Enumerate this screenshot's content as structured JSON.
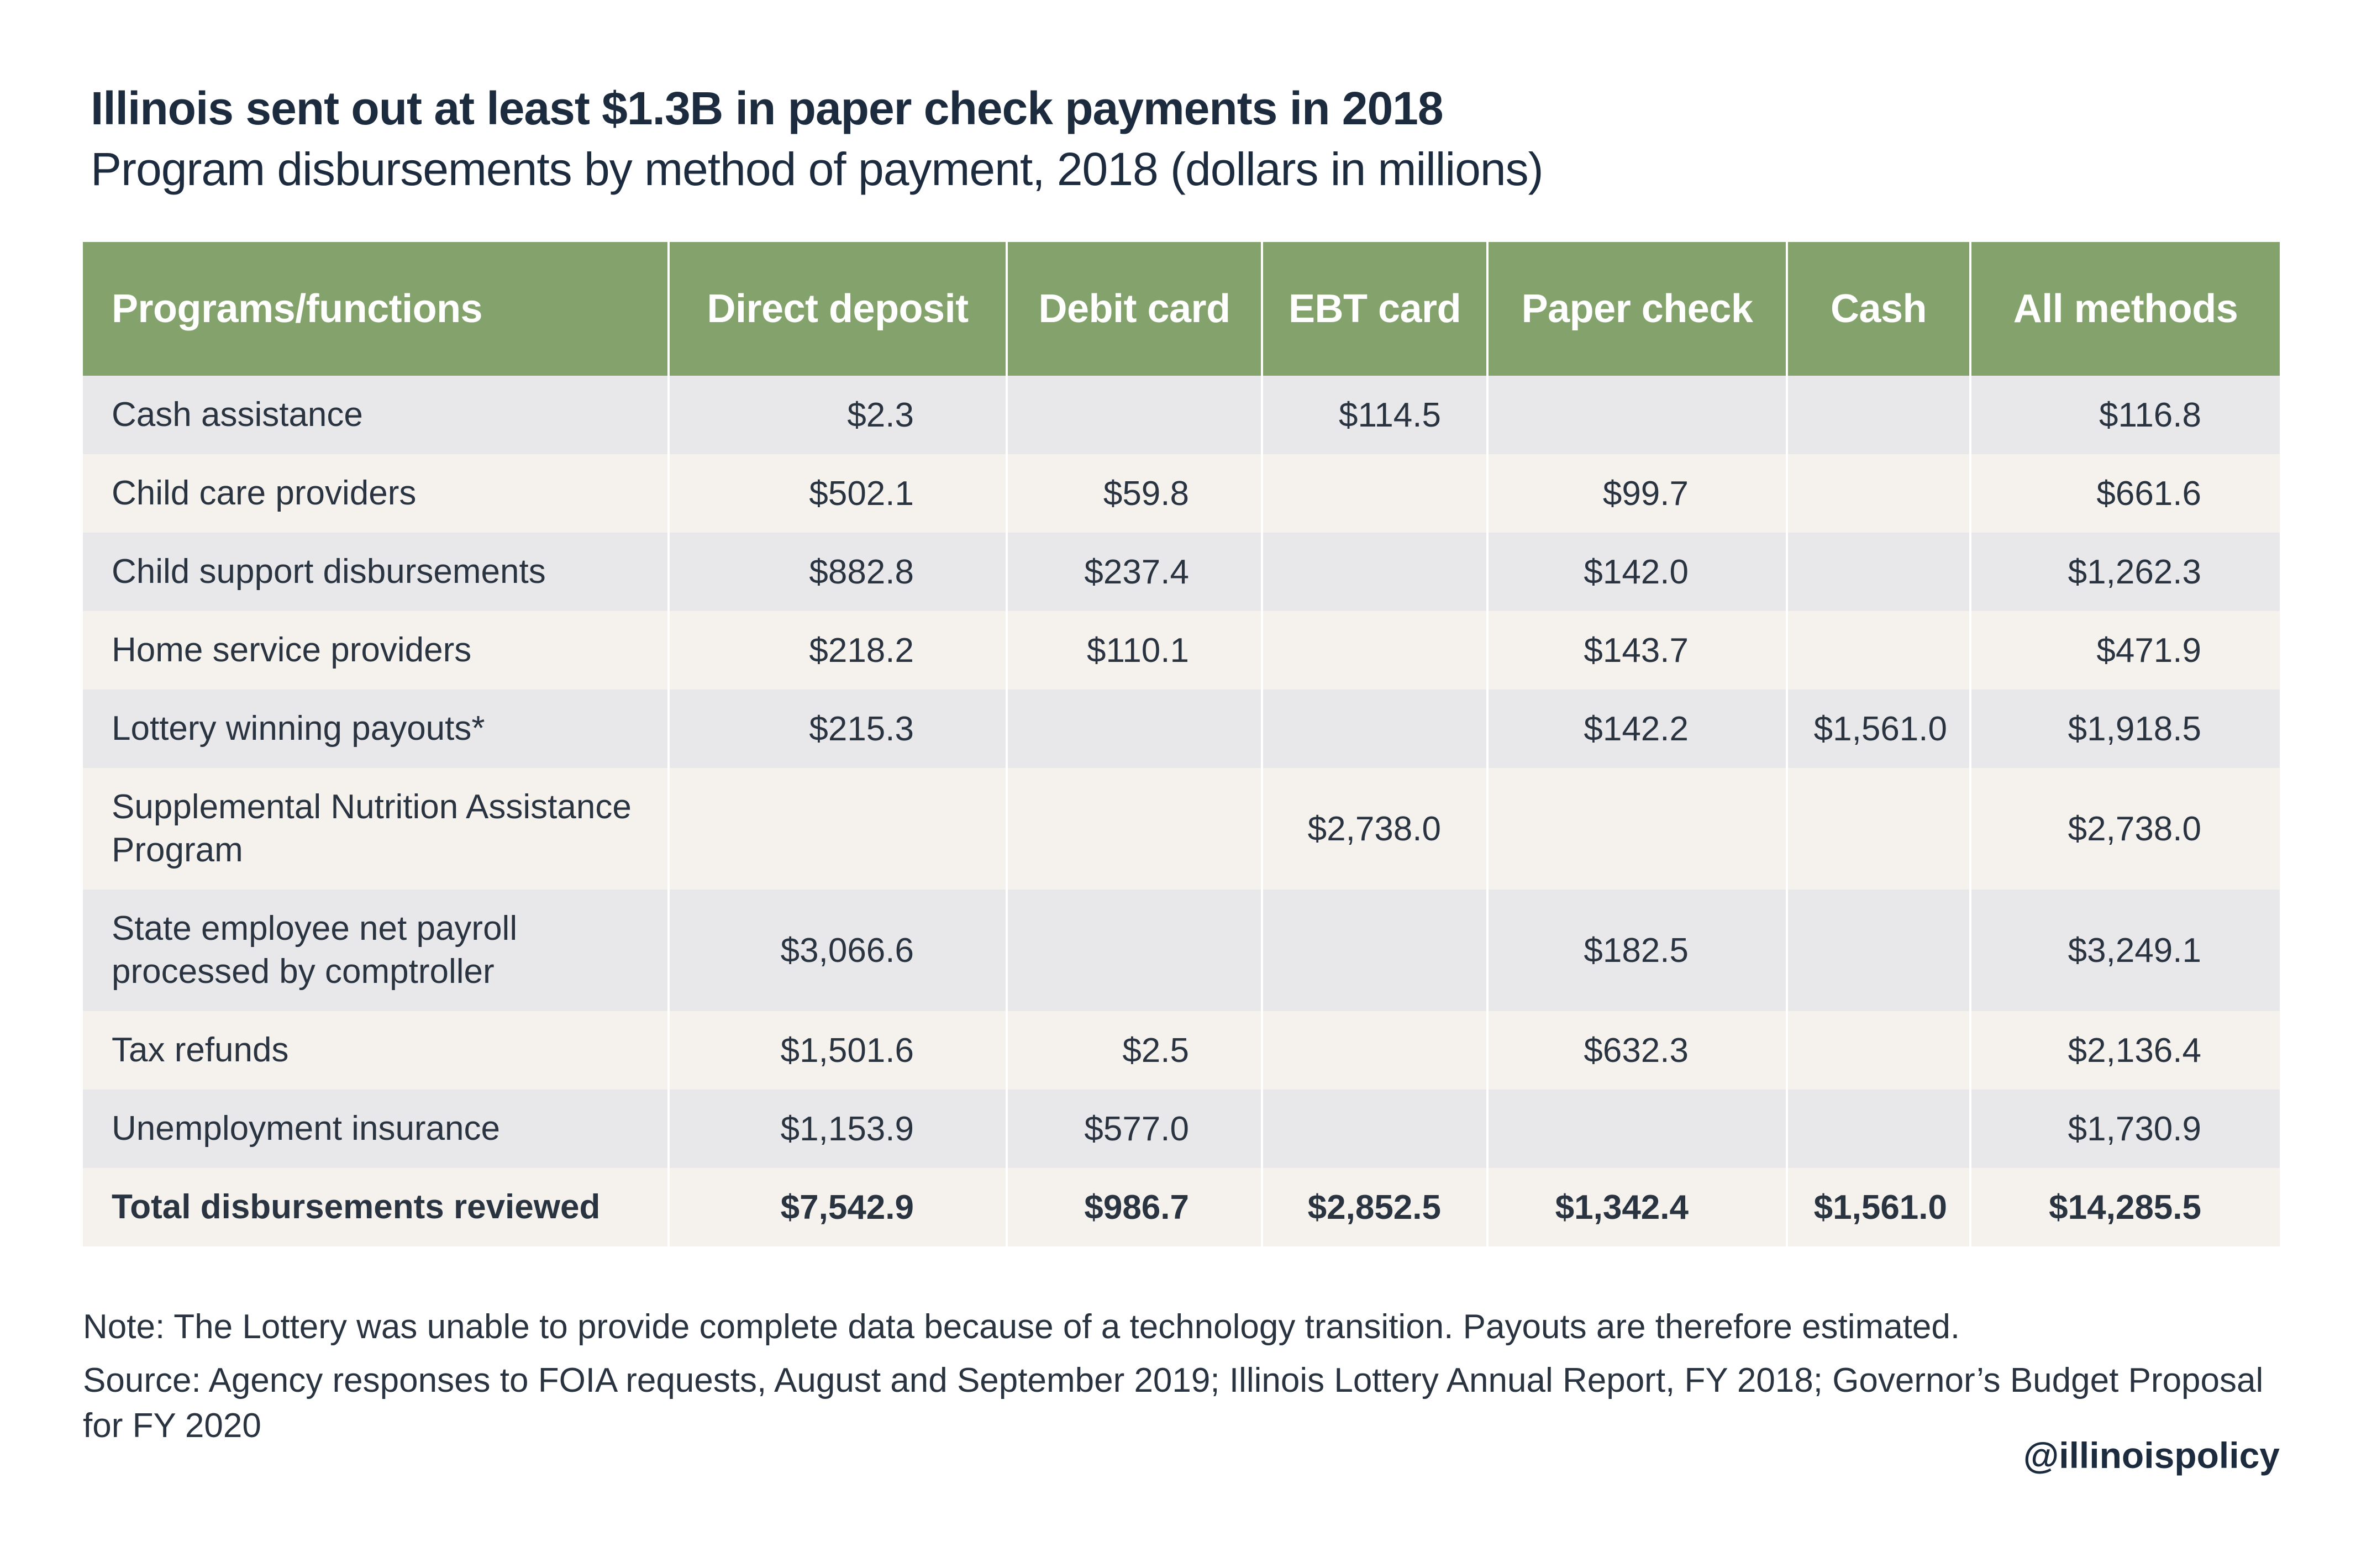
{
  "header": {
    "title": "Illinois sent out at least $1.3B in paper check payments in 2018",
    "subtitle": "Program disbursements by method of payment, 2018 (dollars in millions)"
  },
  "table": {
    "columns": [
      "Programs/functions",
      "Direct deposit",
      "Debit card",
      "EBT card",
      "Paper check",
      "Cash",
      "All methods"
    ],
    "rows": [
      {
        "label": "Cash assistance",
        "cells": [
          "$2.3",
          "",
          "$114.5",
          "",
          "",
          "$116.8"
        ]
      },
      {
        "label": "Child care providers",
        "cells": [
          "$502.1",
          "$59.8",
          "",
          "$99.7",
          "",
          "$661.6"
        ]
      },
      {
        "label": "Child support disbursements",
        "cells": [
          "$882.8",
          "$237.4",
          "",
          "$142.0",
          "",
          "$1,262.3"
        ]
      },
      {
        "label": "Home service providers",
        "cells": [
          "$218.2",
          "$110.1",
          "",
          "$143.7",
          "",
          "$471.9"
        ]
      },
      {
        "label": "Lottery winning payouts*",
        "cells": [
          "$215.3",
          "",
          "",
          "$142.2",
          "$1,561.0",
          "$1,918.5"
        ]
      },
      {
        "label": "Supplemental Nutrition Assistance Program",
        "cells": [
          "",
          "",
          "$2,738.0",
          "",
          "",
          "$2,738.0"
        ]
      },
      {
        "label": "State employee net payroll processed by comptroller",
        "cells": [
          "$3,066.6",
          "",
          "",
          "$182.5",
          "",
          "$3,249.1"
        ]
      },
      {
        "label": "Tax refunds",
        "cells": [
          "$1,501.6",
          "$2.5",
          "",
          "$632.3",
          "",
          "$2,136.4"
        ]
      },
      {
        "label": "Unemployment insurance",
        "cells": [
          "$1,153.9",
          "$577.0",
          "",
          "",
          "",
          "$1,730.9"
        ]
      }
    ],
    "total": {
      "label": "Total disbursements reviewed",
      "cells": [
        "$7,542.9",
        "$986.7",
        "$2,852.5",
        "$1,342.4",
        "$1,561.0",
        "$14,285.5"
      ]
    }
  },
  "footer": {
    "note": "Note: The Lottery was unable to provide complete data because of a technology transition. Payouts are therefore estimated.",
    "source": "Source: Agency responses to FOIA requests, August and September 2019; Illinois Lottery Annual Report, FY 2018; Governor’s Budget Proposal for FY 2020",
    "handle": "@illinoispolicy"
  },
  "colors": {
    "header_bg": "#84a36c",
    "row_odd": "#e8e8ea",
    "row_even": "#f5f2ee",
    "title_text": "#1d2b3f"
  }
}
